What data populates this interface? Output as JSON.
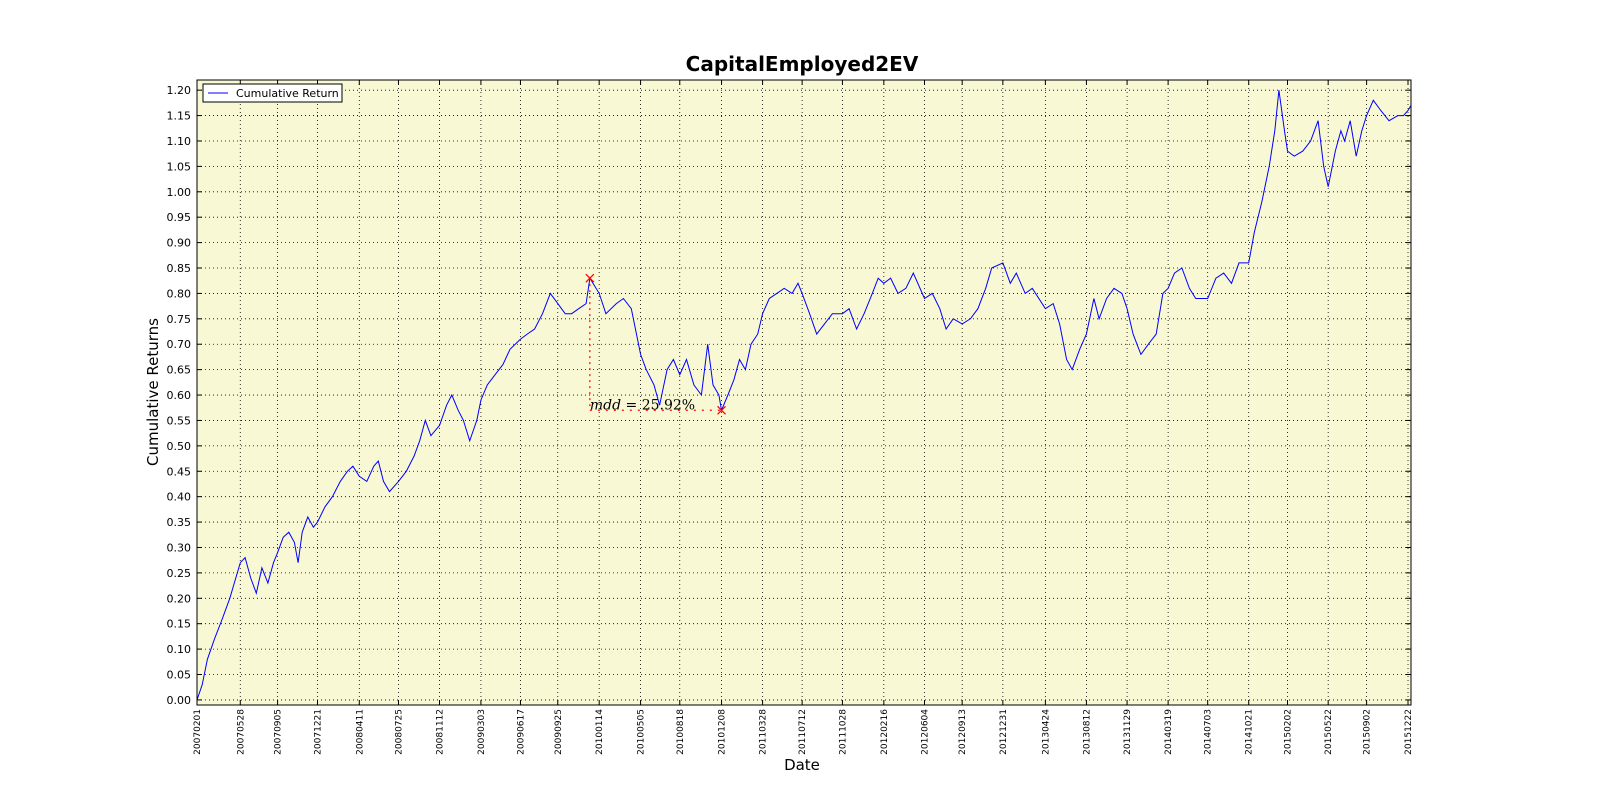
{
  "chart_data": {
    "type": "line",
    "title": "CapitalEmployed2EV",
    "xlabel": "Date",
    "ylabel": "Cumulative Returns",
    "ylim": [
      -0.01,
      1.22
    ],
    "grid": true,
    "legend_placement": "top-left",
    "colors": {
      "plot_background": "#f8f8d4",
      "series": "#0000ff",
      "drawdown": "#ff0000"
    },
    "x_start": "20070201",
    "x_end": "20151230",
    "x_ticks": [
      "20070201",
      "20070528",
      "20070905",
      "20071221",
      "20080411",
      "20080725",
      "20081112",
      "20090303",
      "20090617",
      "20090925",
      "20100114",
      "20100505",
      "20100818",
      "20101208",
      "20110328",
      "20110712",
      "20111028",
      "20120216",
      "20120604",
      "20120913",
      "20121231",
      "20130424",
      "20130812",
      "20131129",
      "20140319",
      "20140703",
      "20141021",
      "20150202",
      "20150522",
      "20150902",
      "20151222"
    ],
    "y_ticks": [
      "0.00",
      "0.05",
      "0.10",
      "0.15",
      "0.20",
      "0.25",
      "0.30",
      "0.35",
      "0.40",
      "0.45",
      "0.50",
      "0.55",
      "0.60",
      "0.65",
      "0.70",
      "0.75",
      "0.80",
      "0.85",
      "0.90",
      "0.95",
      "1.00",
      "1.05",
      "1.10",
      "1.15",
      "1.20"
    ],
    "series": [
      {
        "name": "Cumulative Return",
        "points": [
          [
            "20070201",
            0.0
          ],
          [
            "20070215",
            0.03
          ],
          [
            "20070301",
            0.08
          ],
          [
            "20070320",
            0.12
          ],
          [
            "20070410",
            0.16
          ],
          [
            "20070430",
            0.2
          ],
          [
            "20070520",
            0.25
          ],
          [
            "20070528",
            0.27
          ],
          [
            "20070610",
            0.28
          ],
          [
            "20070625",
            0.24
          ],
          [
            "20070710",
            0.21
          ],
          [
            "20070725",
            0.26
          ],
          [
            "20070810",
            0.23
          ],
          [
            "20070825",
            0.27
          ],
          [
            "20070905",
            0.29
          ],
          [
            "20070920",
            0.32
          ],
          [
            "20071005",
            0.33
          ],
          [
            "20071020",
            0.31
          ],
          [
            "20071030",
            0.27
          ],
          [
            "20071110",
            0.33
          ],
          [
            "20071125",
            0.36
          ],
          [
            "20071210",
            0.34
          ],
          [
            "20071221",
            0.35
          ],
          [
            "20080110",
            0.38
          ],
          [
            "20080130",
            0.4
          ],
          [
            "20080220",
            0.43
          ],
          [
            "20080310",
            0.45
          ],
          [
            "20080325",
            0.46
          ],
          [
            "20080411",
            0.44
          ],
          [
            "20080501",
            0.43
          ],
          [
            "20080520",
            0.46
          ],
          [
            "20080601",
            0.47
          ],
          [
            "20080615",
            0.43
          ],
          [
            "20080701",
            0.41
          ],
          [
            "20080725",
            0.43
          ],
          [
            "20080815",
            0.45
          ],
          [
            "20080905",
            0.48
          ],
          [
            "20080920",
            0.51
          ],
          [
            "20081005",
            0.55
          ],
          [
            "20081020",
            0.52
          ],
          [
            "20081112",
            0.54
          ],
          [
            "20081201",
            0.58
          ],
          [
            "20081215",
            0.6
          ],
          [
            "20090101",
            0.57
          ],
          [
            "20090115",
            0.55
          ],
          [
            "20090201",
            0.51
          ],
          [
            "20090220",
            0.55
          ],
          [
            "20090303",
            0.59
          ],
          [
            "20090320",
            0.62
          ],
          [
            "20090410",
            0.64
          ],
          [
            "20090501",
            0.66
          ],
          [
            "20090520",
            0.69
          ],
          [
            "20090617",
            0.71
          ],
          [
            "20090705",
            0.72
          ],
          [
            "20090725",
            0.73
          ],
          [
            "20090815",
            0.76
          ],
          [
            "20090905",
            0.8
          ],
          [
            "20090925",
            0.78
          ],
          [
            "20091015",
            0.76
          ],
          [
            "20091101",
            0.76
          ],
          [
            "20091120",
            0.77
          ],
          [
            "20091210",
            0.78
          ],
          [
            "20091220",
            0.83
          ],
          [
            "20100114",
            0.8
          ],
          [
            "20100201",
            0.76
          ],
          [
            "20100301",
            0.78
          ],
          [
            "20100320",
            0.79
          ],
          [
            "20100410",
            0.77
          ],
          [
            "20100505",
            0.68
          ],
          [
            "20100520",
            0.65
          ],
          [
            "20100610",
            0.62
          ],
          [
            "20100625",
            0.58
          ],
          [
            "20100715",
            0.65
          ],
          [
            "20100801",
            0.67
          ],
          [
            "20100818",
            0.64
          ],
          [
            "20100905",
            0.67
          ],
          [
            "20100925",
            0.62
          ],
          [
            "20101015",
            0.6
          ],
          [
            "20101101",
            0.7
          ],
          [
            "20101115",
            0.62
          ],
          [
            "20101201",
            0.6
          ],
          [
            "20101208",
            0.57
          ],
          [
            "20101225",
            0.6
          ],
          [
            "20110110",
            0.63
          ],
          [
            "20110125",
            0.67
          ],
          [
            "20110210",
            0.65
          ],
          [
            "20110225",
            0.7
          ],
          [
            "20110315",
            0.72
          ],
          [
            "20110328",
            0.76
          ],
          [
            "20110415",
            0.79
          ],
          [
            "20110505",
            0.8
          ],
          [
            "20110525",
            0.81
          ],
          [
            "20110615",
            0.8
          ],
          [
            "20110701",
            0.82
          ],
          [
            "20110712",
            0.8
          ],
          [
            "20110801",
            0.76
          ],
          [
            "20110820",
            0.72
          ],
          [
            "20110910",
            0.74
          ],
          [
            "20111001",
            0.76
          ],
          [
            "20111028",
            0.76
          ],
          [
            "20111115",
            0.77
          ],
          [
            "20111205",
            0.73
          ],
          [
            "20111225",
            0.76
          ],
          [
            "20120116",
            0.8
          ],
          [
            "20120201",
            0.83
          ],
          [
            "20120216",
            0.82
          ],
          [
            "20120305",
            0.83
          ],
          [
            "20120325",
            0.8
          ],
          [
            "20120415",
            0.81
          ],
          [
            "20120505",
            0.84
          ],
          [
            "20120604",
            0.79
          ],
          [
            "20120625",
            0.8
          ],
          [
            "20120715",
            0.77
          ],
          [
            "20120801",
            0.73
          ],
          [
            "20120820",
            0.75
          ],
          [
            "20120913",
            0.74
          ],
          [
            "20121005",
            0.75
          ],
          [
            "20121025",
            0.77
          ],
          [
            "20121115",
            0.81
          ],
          [
            "20121201",
            0.85
          ],
          [
            "20121231",
            0.86
          ],
          [
            "20130120",
            0.82
          ],
          [
            "20130205",
            0.84
          ],
          [
            "20130301",
            0.8
          ],
          [
            "20130320",
            0.81
          ],
          [
            "20130424",
            0.77
          ],
          [
            "20130515",
            0.78
          ],
          [
            "20130601",
            0.74
          ],
          [
            "20130620",
            0.67
          ],
          [
            "20130705",
            0.65
          ],
          [
            "20130725",
            0.69
          ],
          [
            "20130812",
            0.72
          ],
          [
            "20130901",
            0.79
          ],
          [
            "20130915",
            0.75
          ],
          [
            "20131005",
            0.79
          ],
          [
            "20131025",
            0.81
          ],
          [
            "20131115",
            0.8
          ],
          [
            "20131129",
            0.77
          ],
          [
            "20131215",
            0.72
          ],
          [
            "20140105",
            0.68
          ],
          [
            "20140125",
            0.7
          ],
          [
            "20140215",
            0.72
          ],
          [
            "20140305",
            0.8
          ],
          [
            "20140319",
            0.81
          ],
          [
            "20140405",
            0.84
          ],
          [
            "20140425",
            0.85
          ],
          [
            "20140515",
            0.81
          ],
          [
            "20140601",
            0.79
          ],
          [
            "20140703",
            0.79
          ],
          [
            "20140725",
            0.83
          ],
          [
            "20140815",
            0.84
          ],
          [
            "20140905",
            0.82
          ],
          [
            "20140925",
            0.86
          ],
          [
            "20141021",
            0.86
          ],
          [
            "20141105",
            0.92
          ],
          [
            "20141125",
            0.98
          ],
          [
            "20141215",
            1.05
          ],
          [
            "20141230",
            1.12
          ],
          [
            "20150110",
            1.2
          ],
          [
            "20150125",
            1.12
          ],
          [
            "20150202",
            1.08
          ],
          [
            "20150220",
            1.07
          ],
          [
            "20150315",
            1.08
          ],
          [
            "20150405",
            1.1
          ],
          [
            "20150425",
            1.14
          ],
          [
            "20150510",
            1.05
          ],
          [
            "20150522",
            1.01
          ],
          [
            "20150610",
            1.08
          ],
          [
            "20150625",
            1.12
          ],
          [
            "20150705",
            1.1
          ],
          [
            "20150720",
            1.14
          ],
          [
            "20150805",
            1.07
          ],
          [
            "20150820",
            1.12
          ],
          [
            "20150902",
            1.15
          ],
          [
            "20150920",
            1.18
          ],
          [
            "20151010",
            1.16
          ],
          [
            "20151101",
            1.14
          ],
          [
            "20151125",
            1.15
          ],
          [
            "20151210",
            1.15
          ],
          [
            "20151222",
            1.16
          ],
          [
            "20151230",
            1.17
          ]
        ]
      }
    ],
    "annotations": {
      "mdd_label": "mdd",
      "mdd_equals": " = ",
      "mdd_value": "25.92%",
      "peak": [
        "20091220",
        0.83
      ],
      "trough": [
        "20101208",
        0.57
      ]
    }
  }
}
